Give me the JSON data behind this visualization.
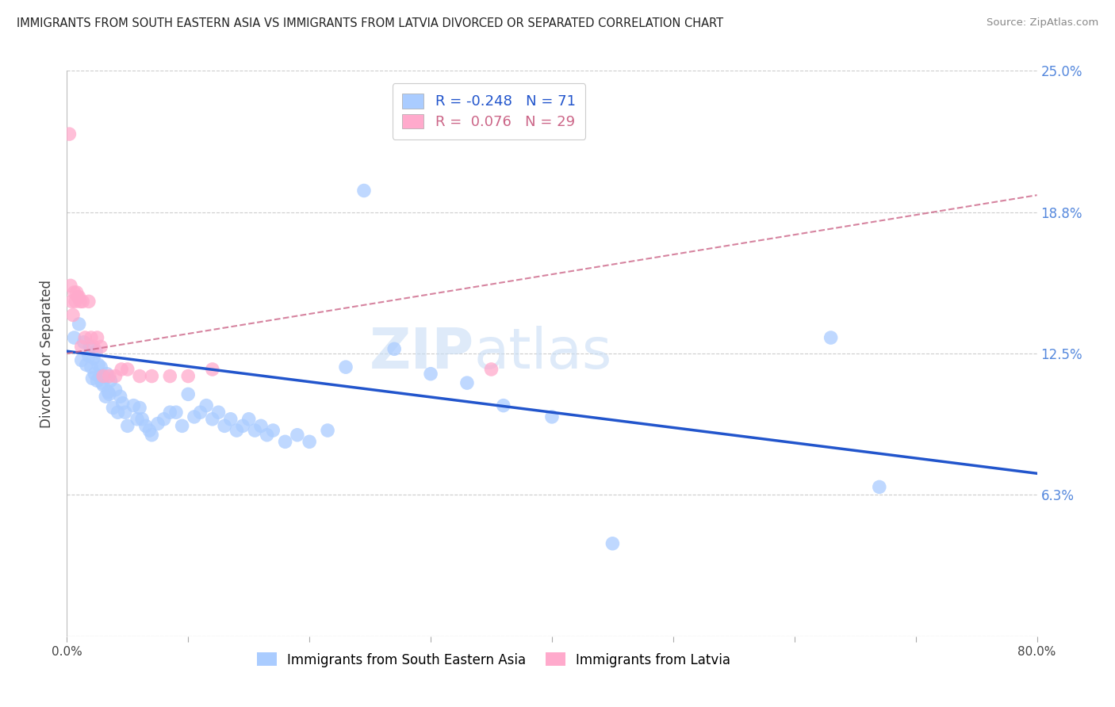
{
  "title": "IMMIGRANTS FROM SOUTH EASTERN ASIA VS IMMIGRANTS FROM LATVIA DIVORCED OR SEPARATED CORRELATION CHART",
  "source": "Source: ZipAtlas.com",
  "xlabel": "",
  "ylabel": "Divorced or Separated",
  "xlim": [
    0.0,
    0.8
  ],
  "ylim": [
    0.0,
    0.25
  ],
  "yticks": [
    0.0,
    0.0625,
    0.125,
    0.1875,
    0.25
  ],
  "ytick_labels": [
    "",
    "6.3%",
    "12.5%",
    "18.8%",
    "25.0%"
  ],
  "xtick_labels": [
    "0.0%",
    "",
    "",
    "",
    "",
    "",
    "",
    "",
    "80.0%"
  ],
  "background_color": "#ffffff",
  "grid_color": "#cccccc",
  "blue_color": "#aaccff",
  "pink_color": "#ffaacc",
  "line_blue": "#2255cc",
  "line_pink": "#cc6688",
  "watermark_zip": "ZIP",
  "watermark_atlas": "atlas",
  "legend_R_blue": "-0.248",
  "legend_N_blue": "71",
  "legend_R_pink": "0.076",
  "legend_N_pink": "29",
  "blue_scatter_x": [
    0.006,
    0.01,
    0.012,
    0.014,
    0.016,
    0.018,
    0.019,
    0.02,
    0.021,
    0.022,
    0.023,
    0.024,
    0.025,
    0.026,
    0.027,
    0.028,
    0.029,
    0.03,
    0.032,
    0.033,
    0.034,
    0.035,
    0.036,
    0.038,
    0.04,
    0.042,
    0.044,
    0.046,
    0.048,
    0.05,
    0.055,
    0.058,
    0.06,
    0.062,
    0.065,
    0.068,
    0.07,
    0.075,
    0.08,
    0.085,
    0.09,
    0.095,
    0.1,
    0.105,
    0.11,
    0.115,
    0.12,
    0.125,
    0.13,
    0.135,
    0.14,
    0.145,
    0.15,
    0.155,
    0.16,
    0.165,
    0.17,
    0.18,
    0.19,
    0.2,
    0.215,
    0.23,
    0.245,
    0.27,
    0.3,
    0.33,
    0.36,
    0.4,
    0.45,
    0.63,
    0.67
  ],
  "blue_scatter_y": [
    0.132,
    0.138,
    0.122,
    0.13,
    0.12,
    0.124,
    0.128,
    0.119,
    0.114,
    0.123,
    0.116,
    0.126,
    0.113,
    0.12,
    0.115,
    0.119,
    0.112,
    0.111,
    0.106,
    0.116,
    0.108,
    0.107,
    0.113,
    0.101,
    0.109,
    0.099,
    0.106,
    0.103,
    0.099,
    0.093,
    0.102,
    0.096,
    0.101,
    0.096,
    0.093,
    0.091,
    0.089,
    0.094,
    0.096,
    0.099,
    0.099,
    0.093,
    0.107,
    0.097,
    0.099,
    0.102,
    0.096,
    0.099,
    0.093,
    0.096,
    0.091,
    0.093,
    0.096,
    0.091,
    0.093,
    0.089,
    0.091,
    0.086,
    0.089,
    0.086,
    0.091,
    0.119,
    0.197,
    0.127,
    0.116,
    0.112,
    0.102,
    0.097,
    0.041,
    0.132,
    0.066
  ],
  "pink_scatter_x": [
    0.002,
    0.003,
    0.004,
    0.005,
    0.006,
    0.007,
    0.008,
    0.009,
    0.01,
    0.011,
    0.012,
    0.013,
    0.015,
    0.018,
    0.02,
    0.022,
    0.025,
    0.028,
    0.03,
    0.035,
    0.04,
    0.045,
    0.05,
    0.06,
    0.07,
    0.085,
    0.1,
    0.12,
    0.35
  ],
  "pink_scatter_y": [
    0.222,
    0.155,
    0.148,
    0.142,
    0.152,
    0.148,
    0.152,
    0.15,
    0.15,
    0.148,
    0.128,
    0.148,
    0.132,
    0.148,
    0.132,
    0.128,
    0.132,
    0.128,
    0.115,
    0.115,
    0.115,
    0.118,
    0.118,
    0.115,
    0.115,
    0.115,
    0.115,
    0.118,
    0.118
  ]
}
